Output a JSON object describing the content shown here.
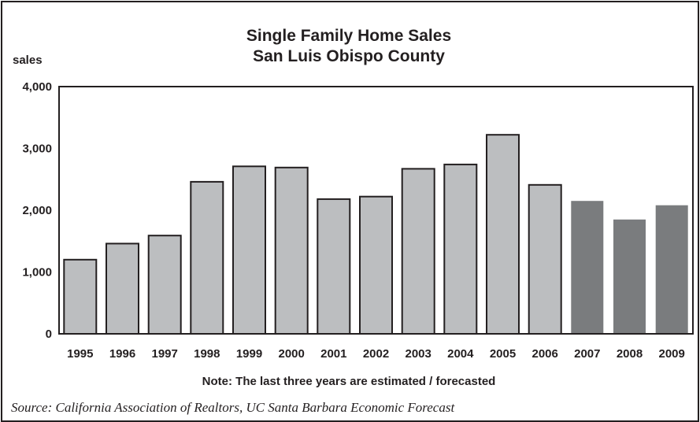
{
  "chart_data": {
    "type": "bar",
    "title": "Single Family Home Sales",
    "subtitle": "San Luis Obispo County",
    "ylabel": "sales",
    "ylim": [
      0,
      4000
    ],
    "yticks": [
      "0",
      "1,000",
      "2,000",
      "3,000",
      "4,000"
    ],
    "ytick_values": [
      0,
      1000,
      2000,
      3000,
      4000
    ],
    "categories": [
      "1995",
      "1996",
      "1997",
      "1998",
      "1999",
      "2000",
      "2001",
      "2002",
      "2003",
      "2004",
      "2005",
      "2006",
      "2007",
      "2008",
      "2009"
    ],
    "values": [
      1200,
      1460,
      1590,
      2460,
      2710,
      2690,
      2180,
      2220,
      2670,
      2740,
      3220,
      2410,
      2150,
      1850,
      2080
    ],
    "estimated": [
      false,
      false,
      false,
      false,
      false,
      false,
      false,
      false,
      false,
      false,
      false,
      false,
      true,
      true,
      true
    ],
    "colors": {
      "actual": "#bcbec0",
      "estimated": "#7a7c7e",
      "outline": "#231f20"
    },
    "note": "Note: The last three years are estimated / forecasted",
    "source": "Source: California Association of Realtors, UC Santa Barbara Economic Forecast"
  }
}
